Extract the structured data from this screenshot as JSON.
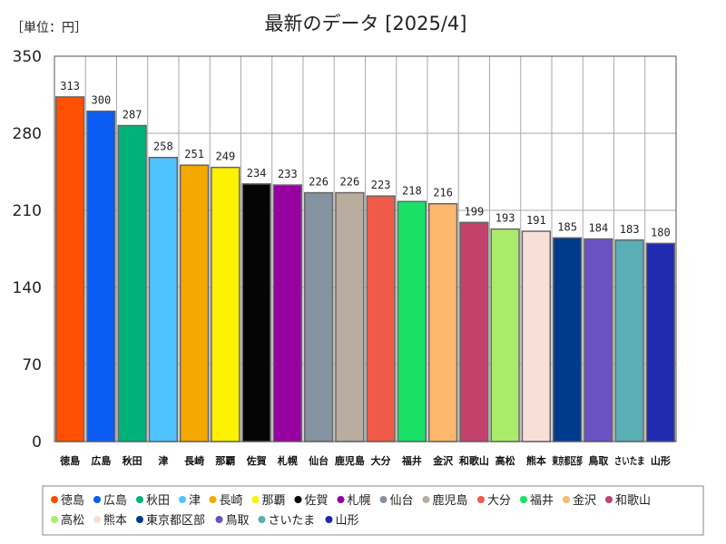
{
  "chart_data": {
    "type": "bar",
    "title": "最新のデータ [2025/4]",
    "unit_label": "［単位：円］",
    "ylim": [
      0,
      350
    ],
    "yticks": [
      0,
      70,
      140,
      210,
      280,
      350
    ],
    "grid": true,
    "legend_position": "bottom",
    "categories": [
      "徳島",
      "広島",
      "秋田",
      "津",
      "長崎",
      "那覇",
      "佐賀",
      "札幌",
      "仙台",
      "鹿児島",
      "大分",
      "福井",
      "金沢",
      "和歌山",
      "高松",
      "熊本",
      "東京都区部",
      "鳥取",
      "さいたま",
      "山形"
    ],
    "values": [
      313,
      300,
      287,
      258,
      251,
      249,
      234,
      233,
      226,
      226,
      223,
      218,
      216,
      199,
      193,
      191,
      185,
      184,
      183,
      180
    ],
    "colors": [
      "#ff4f00",
      "#0a5cf5",
      "#00b079",
      "#4fc3ff",
      "#f5a800",
      "#fff200",
      "#050505",
      "#96009e",
      "#8593a1",
      "#b8ad9e",
      "#f05a48",
      "#19e066",
      "#fbb86e",
      "#c2426b",
      "#aaec69",
      "#f8e0d8",
      "#003a8c",
      "#6b52c2",
      "#5aaeb5",
      "#1f2ab0"
    ]
  }
}
